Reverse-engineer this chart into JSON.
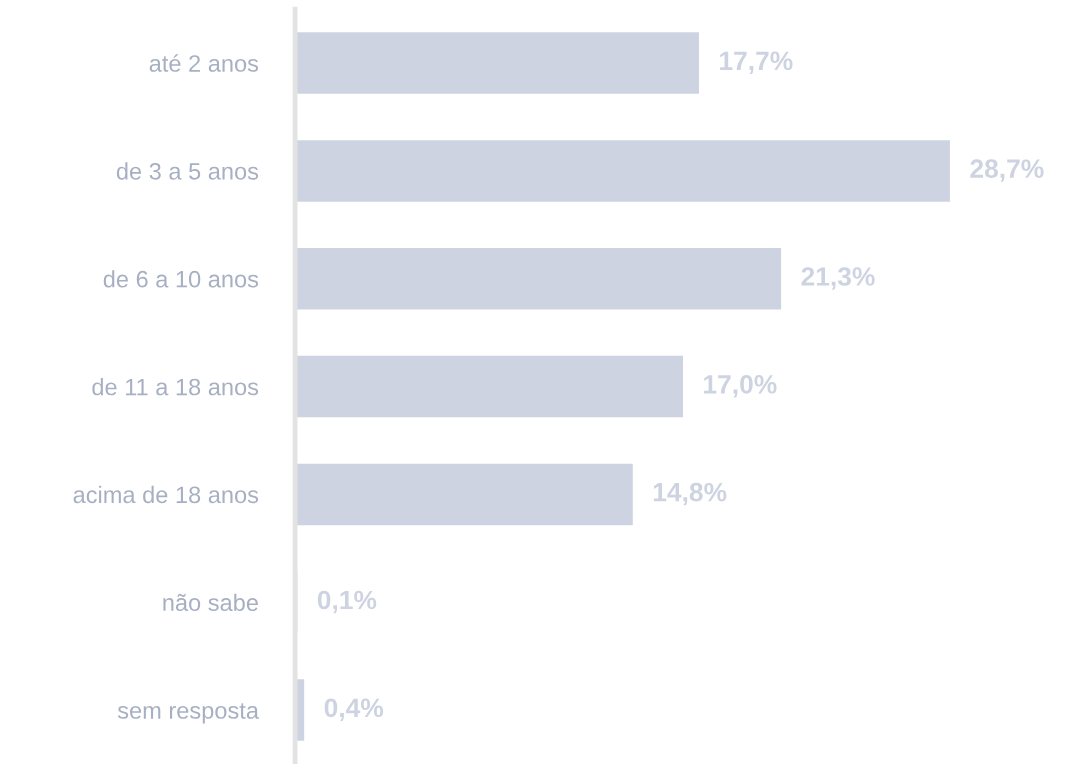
{
  "chart_data": {
    "type": "bar",
    "orientation": "horizontal",
    "categories": [
      "até 2 anos",
      "de 3 a 5 anos",
      "de 6 a 10 anos",
      "de 11 a 18 anos",
      "acima de 18 anos",
      "não sabe",
      "sem resposta"
    ],
    "values": [
      17.7,
      28.7,
      21.3,
      17.0,
      14.8,
      0.1,
      0.4
    ],
    "value_labels": [
      "17,7%",
      "28,7%",
      "21,3%",
      "17,0%",
      "14,8%",
      "0,1%",
      "0,4%"
    ],
    "color": "#cdd3e0",
    "grid": false,
    "legend": false
  }
}
